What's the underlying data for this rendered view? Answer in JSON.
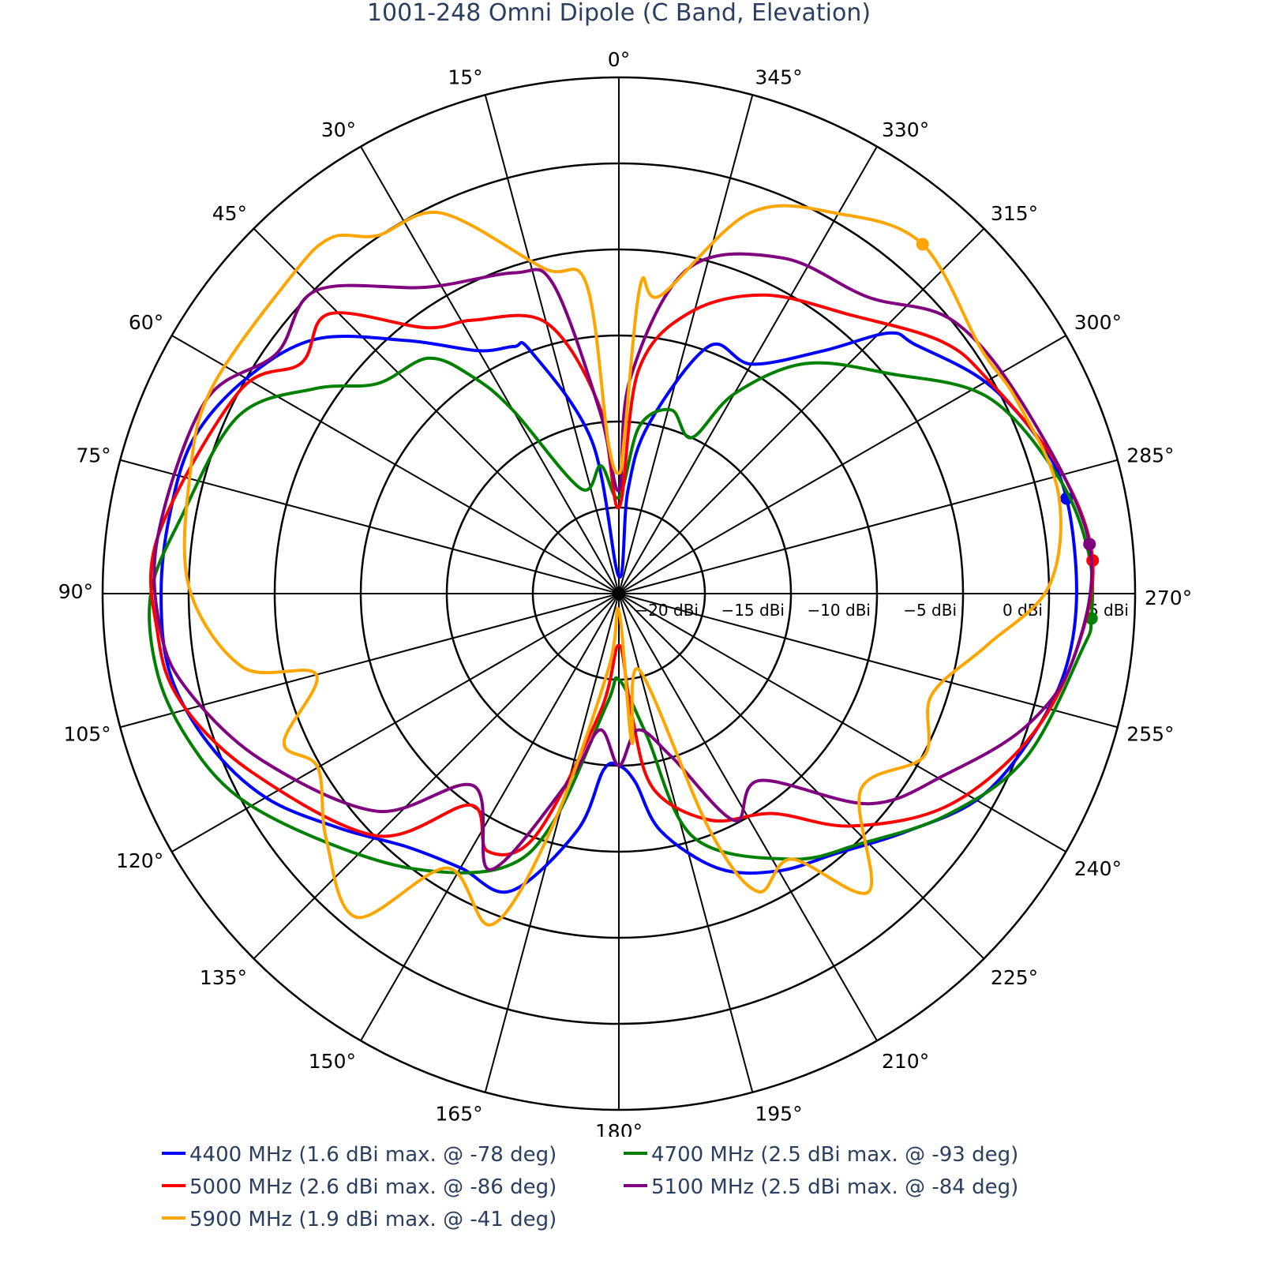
{
  "chart_data": {
    "type": "polar-line",
    "title": "1001-248 Omni Dipole (C Band, Elevation)",
    "angular_axis": {
      "rotation": "0 at top",
      "direction": "counterclockwise",
      "tick_step_deg": 15,
      "tick_labels": [
        "0°",
        "15°",
        "30°",
        "45°",
        "60°",
        "75°",
        "90°",
        "105°",
        "120°",
        "135°",
        "150°",
        "165°",
        "180°",
        "195°",
        "210°",
        "225°",
        "240°",
        "255°",
        "270°",
        "285°",
        "300°",
        "315°",
        "330°",
        "345°"
      ]
    },
    "radial_axis": {
      "range": [
        -25,
        5
      ],
      "tick_values": [
        -20,
        -15,
        -10,
        -5,
        0,
        5
      ],
      "tick_labels": [
        "−20 dBi",
        "−15 dBi",
        "−10 dBi",
        "−5 dBi",
        "0 dBi",
        "5 dBi"
      ],
      "tick_angle_deg": 270
    },
    "grid": true,
    "legend_placement": "bottom",
    "series": [
      {
        "name": "4400 MHz (1.6 dBi max. @ -78 deg)",
        "color": "#0000ff",
        "max_point": [
          282,
          1.6
        ],
        "points": [
          [
            0,
            -24
          ],
          [
            10,
            -16
          ],
          [
            20,
            -10
          ],
          [
            23,
            -9.4
          ],
          [
            30,
            -8.7
          ],
          [
            40,
            -5.8
          ],
          [
            50,
            -2
          ],
          [
            60,
            0
          ],
          [
            70,
            1.3
          ],
          [
            80,
            1.5
          ],
          [
            90,
            1.6
          ],
          [
            100,
            1.5
          ],
          [
            110,
            0.4
          ],
          [
            120,
            -1.3
          ],
          [
            130,
            -3.8
          ],
          [
            140,
            -5.8
          ],
          [
            150,
            -6.6
          ],
          [
            160,
            -6.6
          ],
          [
            170,
            -11
          ],
          [
            175,
            -14.7
          ],
          [
            180,
            -15
          ],
          [
            185,
            -14
          ],
          [
            190,
            -11
          ],
          [
            200,
            -8
          ],
          [
            210,
            -6.4
          ],
          [
            220,
            -5.3
          ],
          [
            230,
            -3.4
          ],
          [
            240,
            -1
          ],
          [
            250,
            0.3
          ],
          [
            260,
            1.3
          ],
          [
            270,
            1.6
          ],
          [
            282,
            1.6
          ],
          [
            290,
            1.0
          ],
          [
            300,
            -0.4
          ],
          [
            310,
            -2.5
          ],
          [
            314,
            -3.2
          ],
          [
            320,
            -6.6
          ],
          [
            330,
            -9.6
          ],
          [
            340,
            -9.7
          ],
          [
            350,
            -15
          ],
          [
            355,
            -19
          ]
        ]
      },
      {
        "name": "4700 MHz (2.5 dBi max. @ -93 deg)",
        "color": "#008000",
        "max_point": [
          267,
          2.5
        ],
        "points": [
          [
            0,
            -19.4
          ],
          [
            8,
            -17.5
          ],
          [
            20,
            -18.5
          ],
          [
            30,
            -12.7
          ],
          [
            34,
            -9.8
          ],
          [
            39,
            -7.4
          ],
          [
            49,
            -6.4
          ],
          [
            56,
            -3.7
          ],
          [
            65,
            -0.6
          ],
          [
            80,
            0.8
          ],
          [
            90,
            2.2
          ],
          [
            100,
            2.2
          ],
          [
            109,
            1.4
          ],
          [
            118,
            0.1
          ],
          [
            129,
            -2.4
          ],
          [
            143,
            -5
          ],
          [
            157,
            -7.7
          ],
          [
            164,
            -11.2
          ],
          [
            174,
            -18.6
          ],
          [
            180,
            -20
          ],
          [
            191,
            -16.7
          ],
          [
            197,
            -10.2
          ],
          [
            213,
            -6.6
          ],
          [
            224,
            -4.8
          ],
          [
            236,
            -2
          ],
          [
            248,
            0.5
          ],
          [
            263,
            2.1
          ],
          [
            267,
            2.5
          ],
          [
            275,
            2.4
          ],
          [
            285,
            1.4
          ],
          [
            298,
            -0.7
          ],
          [
            309,
            -4.7
          ],
          [
            321,
            -7.8
          ],
          [
            330,
            -11.6
          ],
          [
            335,
            -15
          ],
          [
            344,
            -13.9
          ],
          [
            353,
            -15.2
          ]
        ]
      },
      {
        "name": "5000 MHz (2.6 dBi max. @ -86 deg)",
        "color": "#ff0000",
        "max_point": [
          274,
          2.6
        ],
        "points": [
          [
            0,
            -20
          ],
          [
            6,
            -14
          ],
          [
            15,
            -8.7
          ],
          [
            28,
            -7
          ],
          [
            36,
            -5.9
          ],
          [
            46,
            -1.6
          ],
          [
            54,
            -2.2
          ],
          [
            62,
            0
          ],
          [
            83,
            2
          ],
          [
            95,
            1.9
          ],
          [
            104,
            1.2
          ],
          [
            116,
            -1.3
          ],
          [
            135,
            -5.1
          ],
          [
            145,
            -10
          ],
          [
            153,
            -8.2
          ],
          [
            161,
            -10.1
          ],
          [
            171,
            -18
          ],
          [
            180,
            -22
          ],
          [
            186,
            -18
          ],
          [
            190,
            -13.5
          ],
          [
            202,
            -10.8
          ],
          [
            215,
            -9.4
          ],
          [
            225,
            -5.9
          ],
          [
            237,
            -2.3
          ],
          [
            250,
            0.2
          ],
          [
            262,
            1.7
          ],
          [
            274,
            2.6
          ],
          [
            286,
            1.6
          ],
          [
            300,
            -0.2
          ],
          [
            308,
            -1.2
          ],
          [
            320,
            -3.9
          ],
          [
            334,
            -5.7
          ],
          [
            346,
            -8.2
          ],
          [
            355,
            -12
          ]
        ]
      },
      {
        "name": "5100 MHz (2.5 dBi max. @ -84 deg)",
        "color": "#800080",
        "max_point": [
          276,
          2.5
        ],
        "points": [
          [
            0,
            -19
          ],
          [
            6,
            -14.3
          ],
          [
            12,
            -6.6
          ],
          [
            18,
            -5.4
          ],
          [
            32,
            -4
          ],
          [
            45,
            -0.1
          ],
          [
            55,
            -0.7
          ],
          [
            65,
            1.5
          ],
          [
            83,
            2
          ],
          [
            95,
            1.7
          ],
          [
            103,
            0.6
          ],
          [
            115,
            -2.1
          ],
          [
            132,
            -6.1
          ],
          [
            143,
            -11
          ],
          [
            155,
            -7.3
          ],
          [
            165,
            -13.7
          ],
          [
            172,
            -17
          ],
          [
            180,
            -15
          ],
          [
            188,
            -17
          ],
          [
            198,
            -15
          ],
          [
            207,
            -10.2
          ],
          [
            217,
            -11.4
          ],
          [
            230,
            -6
          ],
          [
            241,
            -3.3
          ],
          [
            252,
            -0.1
          ],
          [
            262,
            1.7
          ],
          [
            276,
            2.5
          ],
          [
            294,
            1.0
          ],
          [
            309,
            0.1
          ],
          [
            320,
            -2.5
          ],
          [
            334,
            -3.3
          ],
          [
            348,
            -5.7
          ],
          [
            357,
            -12.5
          ]
        ]
      },
      {
        "name": "5900 MHz (1.9 dBi max. @ -41 deg)",
        "color": "#ffa500",
        "max_point": [
          319,
          1.9
        ],
        "points": [
          [
            0,
            -18
          ],
          [
            4,
            -16.2
          ],
          [
            6,
            -6.9
          ],
          [
            13,
            -5.6
          ],
          [
            25,
            -0.6
          ],
          [
            34,
            0.1
          ],
          [
            39,
            1.6
          ],
          [
            46,
            1.5
          ],
          [
            63,
            1.5
          ],
          [
            74,
            0.9
          ],
          [
            89,
            0
          ],
          [
            101,
            -2.7
          ],
          [
            105,
            -6.8
          ],
          [
            114,
            -3.7
          ],
          [
            120,
            -4.8
          ],
          [
            130,
            -2.8
          ],
          [
            141,
            -0.8
          ],
          [
            148,
            -6.2
          ],
          [
            159,
            -4.4
          ],
          [
            164,
            -10.8
          ],
          [
            172,
            -20.5
          ],
          [
            180,
            -24
          ],
          [
            185,
            -16.3
          ],
          [
            195,
            -20.4
          ],
          [
            201,
            -10.3
          ],
          [
            205,
            -5.9
          ],
          [
            213,
            -6.6
          ],
          [
            220,
            -2.4
          ],
          [
            231,
            -6.9
          ],
          [
            242,
            -4.9
          ],
          [
            252,
            -5.9
          ],
          [
            262,
            -3.4
          ],
          [
            271,
            0
          ],
          [
            283,
            1.2
          ],
          [
            296,
            0.7
          ],
          [
            304,
            0.4
          ],
          [
            319,
            1.9
          ],
          [
            330,
            0.5
          ],
          [
            341,
            -1.6
          ],
          [
            352,
            -7.5
          ],
          [
            356,
            -7
          ],
          [
            358,
            -16
          ]
        ]
      }
    ]
  }
}
